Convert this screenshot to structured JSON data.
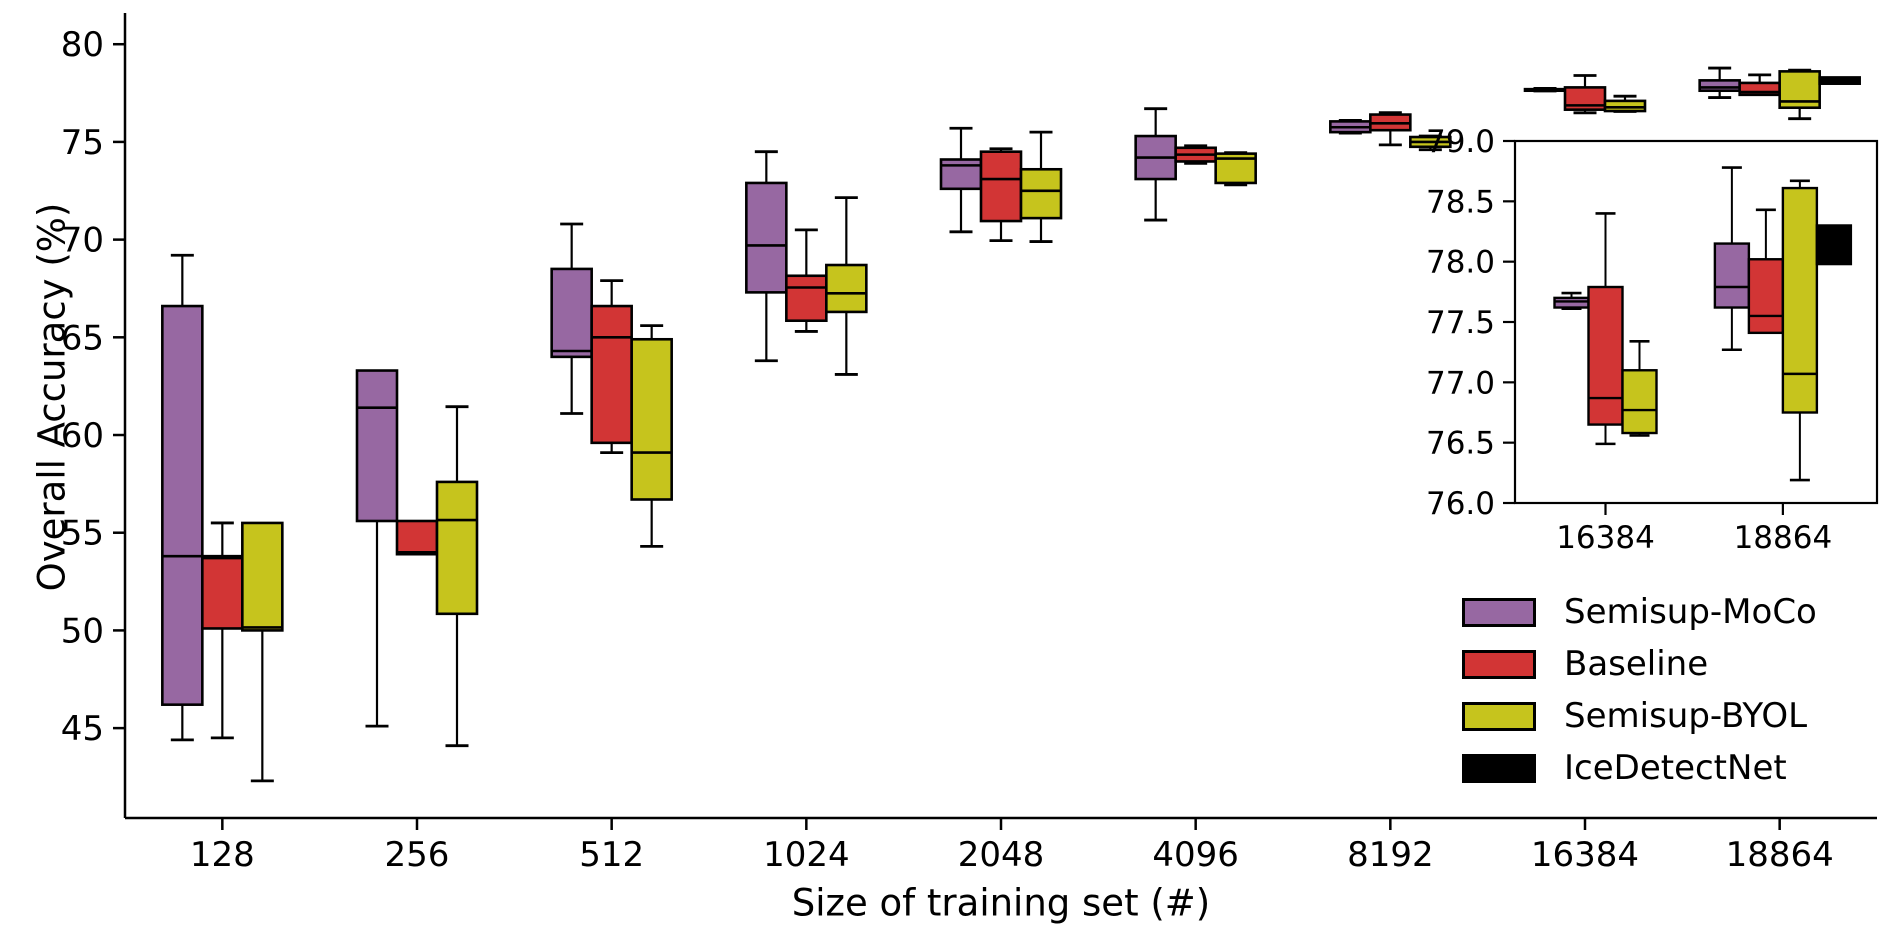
{
  "chart_data": {
    "type": "boxplot",
    "title": "",
    "xlabel": "Size of training set (#)",
    "ylabel": "Overall Accuracy (%)",
    "categories": [
      "128",
      "256",
      "512",
      "1024",
      "2048",
      "4096",
      "8192",
      "16384",
      "18864"
    ],
    "yticks": [
      45,
      50,
      55,
      60,
      65,
      70,
      75,
      80
    ],
    "ylim": [
      40.4,
      81.5
    ],
    "grid": false,
    "legend_position": "inside-bottom-right",
    "series": [
      {
        "name": "Semisup-MoCo",
        "color": "#9768a2",
        "boxes": [
          {
            "lo": 44.4,
            "q1": 46.2,
            "med": 53.8,
            "q3": 66.6,
            "hi": 69.2
          },
          {
            "lo": 45.1,
            "q1": 55.6,
            "med": 61.4,
            "q3": 63.3,
            "hi": 63.3
          },
          {
            "lo": 61.1,
            "q1": 64.0,
            "med": 64.3,
            "q3": 68.5,
            "hi": 70.8
          },
          {
            "lo": 63.8,
            "q1": 67.3,
            "med": 69.7,
            "q3": 72.9,
            "hi": 74.5
          },
          {
            "lo": 70.4,
            "q1": 72.6,
            "med": 73.8,
            "q3": 74.1,
            "hi": 75.7
          },
          {
            "lo": 71.0,
            "q1": 73.1,
            "med": 74.2,
            "q3": 75.3,
            "hi": 76.7
          },
          {
            "lo": 75.45,
            "q1": 75.5,
            "med": 75.75,
            "q3": 76.05,
            "hi": 76.1
          },
          {
            "lo": 77.61,
            "q1": 77.62,
            "med": 77.67,
            "q3": 77.7,
            "hi": 77.74
          },
          {
            "lo": 77.27,
            "q1": 77.62,
            "med": 77.79,
            "q3": 78.15,
            "hi": 78.78
          }
        ]
      },
      {
        "name": "Baseline",
        "color": "#d23535",
        "boxes": [
          {
            "lo": 44.5,
            "q1": 50.1,
            "med": 53.7,
            "q3": 53.8,
            "hi": 55.5
          },
          {
            "lo": 53.9,
            "q1": 53.9,
            "med": 54.0,
            "q3": 55.6,
            "hi": 55.6
          },
          {
            "lo": 59.1,
            "q1": 59.6,
            "med": 65.0,
            "q3": 66.6,
            "hi": 67.9
          },
          {
            "lo": 65.3,
            "q1": 65.85,
            "med": 67.55,
            "q3": 68.15,
            "hi": 70.5
          },
          {
            "lo": 69.95,
            "q1": 70.95,
            "med": 73.1,
            "q3": 74.5,
            "hi": 74.65
          },
          {
            "lo": 73.9,
            "q1": 74.0,
            "med": 74.35,
            "q3": 74.7,
            "hi": 74.8
          },
          {
            "lo": 74.85,
            "q1": 75.6,
            "med": 75.95,
            "q3": 76.4,
            "hi": 76.5
          },
          {
            "lo": 76.49,
            "q1": 76.65,
            "med": 76.87,
            "q3": 77.79,
            "hi": 78.4
          },
          {
            "lo": 77.41,
            "q1": 77.41,
            "med": 77.55,
            "q3": 78.02,
            "hi": 78.43
          }
        ]
      },
      {
        "name": "Semisup-BYOL",
        "color": "#c6c41d",
        "boxes": [
          {
            "lo": 42.3,
            "q1": 50.0,
            "med": 50.15,
            "q3": 55.5,
            "hi": 55.5
          },
          {
            "lo": 44.1,
            "q1": 50.85,
            "med": 55.65,
            "q3": 57.6,
            "hi": 61.45
          },
          {
            "lo": 54.3,
            "q1": 56.7,
            "med": 59.1,
            "q3": 64.9,
            "hi": 65.6
          },
          {
            "lo": 63.1,
            "q1": 66.3,
            "med": 67.25,
            "q3": 68.7,
            "hi": 72.15
          },
          {
            "lo": 69.9,
            "q1": 71.1,
            "med": 72.5,
            "q3": 73.6,
            "hi": 75.5
          },
          {
            "lo": 72.8,
            "q1": 72.9,
            "med": 74.15,
            "q3": 74.4,
            "hi": 74.45
          },
          {
            "lo": 74.6,
            "q1": 74.75,
            "med": 75.0,
            "q3": 75.25,
            "hi": 75.3
          },
          {
            "lo": 76.56,
            "q1": 76.58,
            "med": 76.77,
            "q3": 77.1,
            "hi": 77.34
          },
          {
            "lo": 76.19,
            "q1": 76.75,
            "med": 77.07,
            "q3": 78.61,
            "hi": 78.67
          }
        ]
      },
      {
        "name": "IceDetectNet",
        "color": "#000000",
        "boxes": [
          null,
          null,
          null,
          null,
          null,
          null,
          null,
          null,
          {
            "lo": 77.98,
            "q1": 77.98,
            "med": null,
            "q3": 78.3,
            "hi": 78.3
          }
        ]
      }
    ],
    "inset": {
      "categories": [
        "16384",
        "18864"
      ],
      "yticks": [
        79.0,
        78.5,
        78.0,
        77.5,
        77.0,
        76.5,
        76.0
      ],
      "ylim": [
        76.0,
        79.0
      ]
    }
  }
}
